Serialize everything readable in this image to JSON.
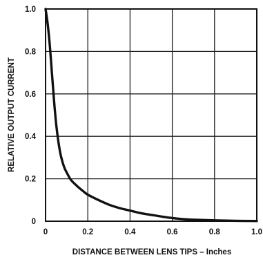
{
  "chart_data": {
    "type": "line",
    "title": "",
    "xlabel": "DISTANCE BETWEEN LENS TIPS – Inches",
    "ylabel": "RELATIVE OUTPUT CURRENT",
    "xlim": [
      0,
      1.0
    ],
    "ylim": [
      0,
      1.0
    ],
    "x_ticks": [
      0,
      0.2,
      0.4,
      0.6,
      0.8,
      1.0
    ],
    "x_tick_labels": [
      "0",
      "0.2",
      "0.4",
      "0.6",
      "0.8",
      "1.0"
    ],
    "y_ticks": [
      0,
      0.2,
      0.4,
      0.6,
      0.8,
      1.0
    ],
    "y_tick_labels": [
      "0",
      "0.2",
      "0.4",
      "0.6",
      "0.8",
      "1.0"
    ],
    "grid": true,
    "legend": "none",
    "series": [
      {
        "x": [
          0,
          0.01,
          0.02,
          0.03,
          0.04,
          0.05,
          0.06,
          0.07,
          0.08,
          0.09,
          0.1,
          0.12,
          0.15,
          0.18,
          0.2,
          0.25,
          0.3,
          0.35,
          0.4,
          0.45,
          0.5,
          0.55,
          0.6,
          0.65,
          0.7,
          0.8,
          0.9,
          1.0
        ],
        "y": [
          1.0,
          0.93,
          0.83,
          0.7,
          0.57,
          0.46,
          0.38,
          0.32,
          0.28,
          0.25,
          0.23,
          0.195,
          0.165,
          0.14,
          0.125,
          0.1,
          0.078,
          0.062,
          0.05,
          0.038,
          0.03,
          0.022,
          0.015,
          0.01,
          0.007,
          0.004,
          0.002,
          0.001
        ],
        "color": "#111111"
      }
    ]
  }
}
